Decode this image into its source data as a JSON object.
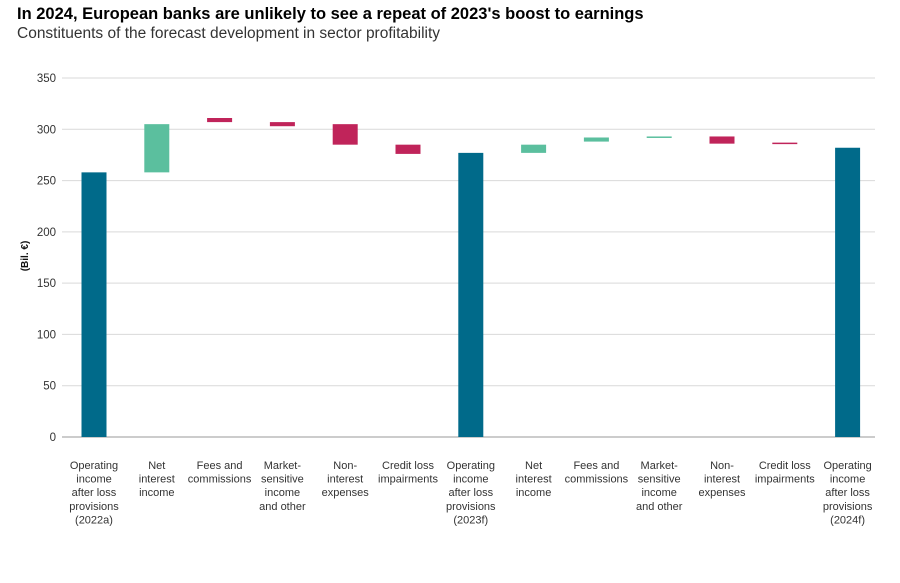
{
  "chart_data": {
    "type": "waterfall",
    "title": "In 2024, European banks are unlikely to see a repeat of 2023's boost to earnings",
    "subtitle": "Constituents of the forecast development in sector profitability",
    "ylabel": "(Bil. €)",
    "xlabel": "",
    "ylim": [
      0,
      350
    ],
    "yticks": [
      0,
      50,
      100,
      150,
      200,
      250,
      300,
      350
    ],
    "grid": true,
    "colors": {
      "total": "#006a8a",
      "increase": "#5bbf9e",
      "decrease": "#c0245a"
    },
    "bars": [
      {
        "label": [
          "Operating",
          "income",
          "after loss",
          "provisions",
          "(2022a)"
        ],
        "kind": "total",
        "start": 0,
        "end": 258
      },
      {
        "label": [
          "Net",
          "interest",
          "income"
        ],
        "kind": "increase",
        "start": 258,
        "end": 305
      },
      {
        "label": [
          "Fees and",
          "commissions"
        ],
        "kind": "decrease",
        "start": 311,
        "end": 307
      },
      {
        "label": [
          "Market-",
          "sensitive",
          "income",
          "and other"
        ],
        "kind": "decrease",
        "start": 307,
        "end": 303
      },
      {
        "label": [
          "Non-",
          "interest",
          "expenses"
        ],
        "kind": "decrease",
        "start": 305,
        "end": 285
      },
      {
        "label": [
          "Credit loss",
          "impairments"
        ],
        "kind": "decrease",
        "start": 285,
        "end": 276
      },
      {
        "label": [
          "Operating",
          "income",
          "after loss",
          "provisions",
          "(2023f)"
        ],
        "kind": "total",
        "start": 0,
        "end": 277
      },
      {
        "label": [
          "Net",
          "interest",
          "income"
        ],
        "kind": "increase",
        "start": 277,
        "end": 285
      },
      {
        "label": [
          "Fees and",
          "commissions"
        ],
        "kind": "increase",
        "start": 288,
        "end": 292
      },
      {
        "label": [
          "Market-",
          "sensitive",
          "income",
          "and other"
        ],
        "kind": "increase",
        "start": 292,
        "end": 293
      },
      {
        "label": [
          "Non-",
          "interest",
          "expenses"
        ],
        "kind": "decrease",
        "start": 293,
        "end": 286
      },
      {
        "label": [
          "Credit loss",
          "impairments"
        ],
        "kind": "decrease",
        "start": 287,
        "end": 286
      },
      {
        "label": [
          "Operating",
          "income",
          "after loss",
          "provisions",
          "(2024f)"
        ],
        "kind": "total",
        "start": 0,
        "end": 282
      }
    ]
  }
}
